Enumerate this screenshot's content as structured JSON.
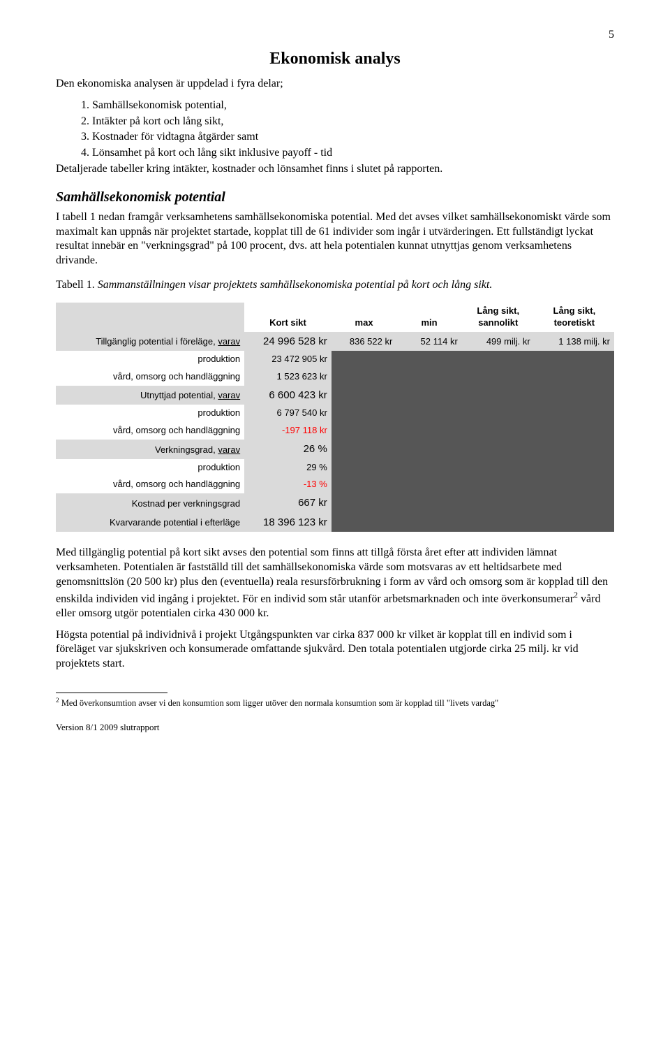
{
  "page": {
    "number": "5"
  },
  "title": "Ekonomisk analys",
  "intro": {
    "lead": "Den ekonomiska analysen är uppdelad i fyra delar;",
    "items": [
      "1.  Samhällsekonomisk potential,",
      "2.  Intäkter på kort och lång sikt,",
      "3.  Kostnader för vidtagna åtgärder samt",
      "4.  Lönsamhet på kort och lång sikt inklusive payoff - tid"
    ],
    "after": "Detaljerade tabeller kring intäkter, kostnader och lönsamhet finns i slutet på rapporten."
  },
  "section1": {
    "heading": "Samhällsekonomisk potential",
    "body": "I tabell 1 nedan framgår verksamhetens samhällsekonomiska potential. Med det avses vilket samhällsekonomiskt värde som maximalt kan uppnås när projektet startade, kopplat till de 61 individer som ingår i utvärderingen. Ett fullständigt lyckat resultat innebär en \"verkningsgrad\" på 100 procent, dvs. att hela potentialen kunnat utnyttjas genom verksamhetens drivande."
  },
  "caption1": {
    "label": "Tabell 1. ",
    "text": "Sammanställningen visar projektets samhällsekonomiska potential på kort och lång sikt."
  },
  "table": {
    "headers": {
      "kort": "Kort sikt",
      "max": "max",
      "min": "min",
      "sannolikt_l1": "Lång sikt,",
      "sannolikt_l2": "sannolikt",
      "teoretiskt_l1": "Lång sikt,",
      "teoretiskt_l2": "teoretiskt"
    },
    "rows": [
      {
        "label_pre": "Tillgänglig potential i föreläge, ",
        "label_u": "varav",
        "kort": "24 996 528 kr",
        "kort_big": true,
        "max": "836 522 kr",
        "min": "52 114 kr",
        "sannolikt": "499 milj. kr",
        "teoretiskt": "1 138 milj. kr",
        "light": false
      },
      {
        "label_pre": "produktion",
        "kort": "23 472 905 kr",
        "light": true,
        "dark": true
      },
      {
        "label_pre": "vård, omsorg och handläggning",
        "kort": "1 523 623 kr",
        "light": true,
        "dark": true
      },
      {
        "label_pre": "Utnyttjad potential, ",
        "label_u": "varav",
        "kort": "6 600 423 kr",
        "kort_big": true,
        "light": false,
        "dark": true
      },
      {
        "label_pre": "produktion",
        "kort": "6 797 540 kr",
        "light": true,
        "dark": true
      },
      {
        "label_pre": "vård, omsorg och handläggning",
        "kort": "-197 118 kr",
        "neg": true,
        "light": true,
        "dark": true
      },
      {
        "label_pre": "Verkningsgrad, ",
        "label_u": "varav",
        "kort": "26 %",
        "kort_big": true,
        "light": false,
        "dark": true
      },
      {
        "label_pre": "produktion",
        "kort": "29 %",
        "light": true,
        "dark": true
      },
      {
        "label_pre": "vård, omsorg och handläggning",
        "kort": "-13 %",
        "neg": true,
        "light": true,
        "dark": true
      },
      {
        "label_pre": "Kostnad per verkningsgrad",
        "kort": "667 kr",
        "kort_big": true,
        "light": false,
        "dark": true
      },
      {
        "label_pre": "Kvarvarande potential i efterläge",
        "kort": "18 396 123 kr",
        "kort_big": true,
        "light": false,
        "dark": true
      }
    ]
  },
  "after_table": {
    "p1a": "Med tillgänglig potential på kort sikt avses den potential som finns att tillgå första året efter att individen lämnat verksamheten. Potentialen är fastställd till det samhällsekonomiska värde som motsvaras av ett heltidsarbete med genomsnittslön (20 500 kr) plus den (eventuella) reala resursförbrukning i form av vård och omsorg som är kopplad till den enskilda individen vid ingång i projektet. För en individ som står utanför arbetsmarknaden och inte överkonsumerar",
    "p1_sup": "2",
    "p1b": " vård eller omsorg utgör potentialen cirka 430 000 kr.",
    "p2": "Högsta potential på individnivå i projekt Utgångspunkten var cirka 837 000 kr vilket är kopplat till en individ som i föreläget var sjukskriven och konsumerade omfattande sjukvård. Den totala potentialen utgjorde cirka 25 milj. kr vid projektets start."
  },
  "footnote": {
    "num": "2",
    "text": " Med överkonsumtion avser vi den konsumtion som ligger utöver den normala konsumtion som är kopplad till \"livets vardag\""
  },
  "version": "Version 8/1 2009 slutrapport"
}
